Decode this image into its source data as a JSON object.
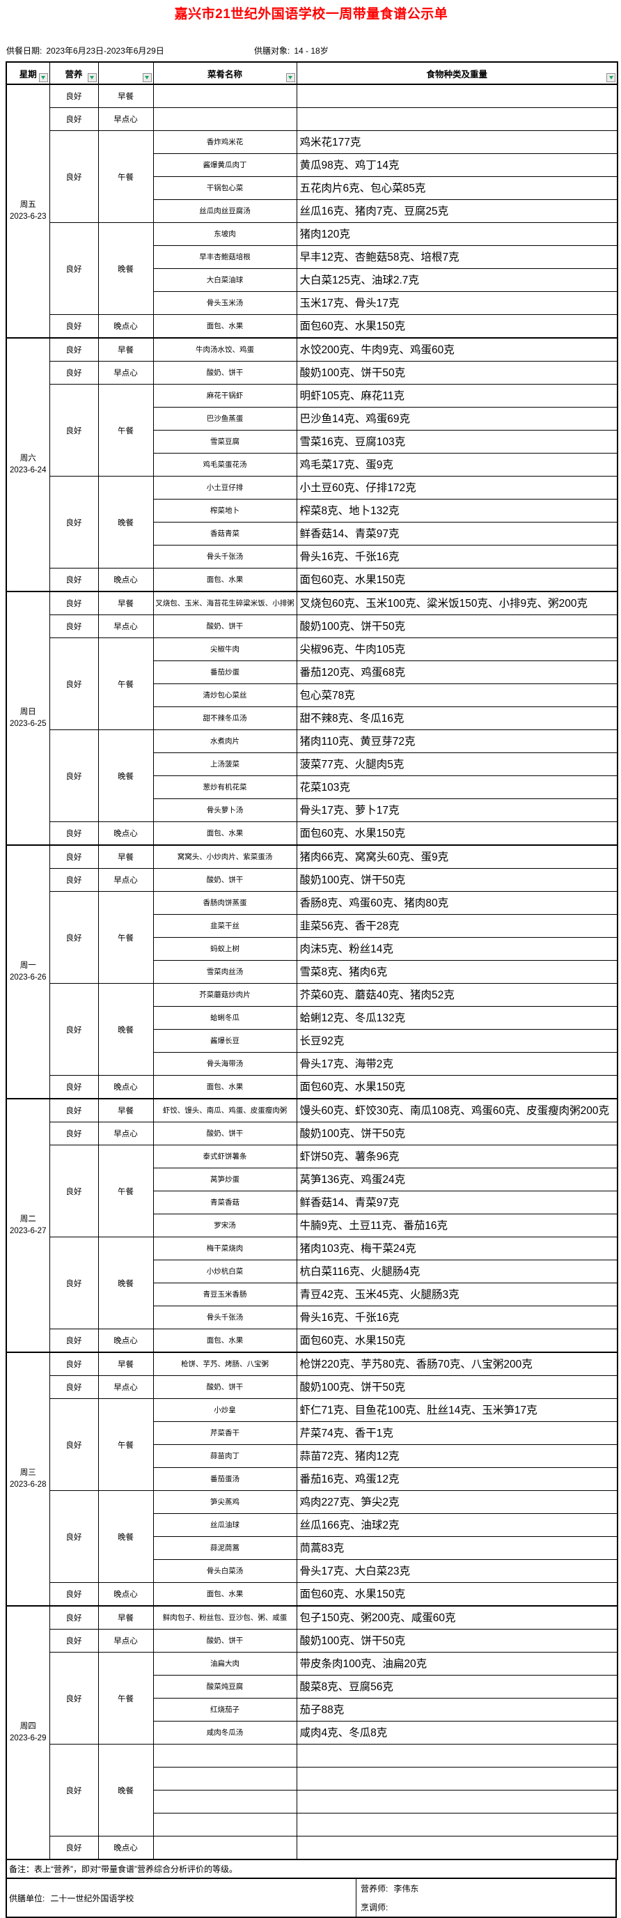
{
  "title": "嘉兴市21世纪外国语学校一周带量食谱公示单",
  "accent_colors": {
    "title_red": "#FF0000",
    "filter_green": "#1FA463"
  },
  "meta": {
    "serve_date_label": "供餐日期:",
    "serve_date": "2023年6月23日-2023年6月29日",
    "target_label": "供膳对象:",
    "target": "14 - 18岁"
  },
  "table": {
    "headers": {
      "day": "星期",
      "nutrition": "营养",
      "meal": "",
      "dish": "菜肴名称",
      "food": "食物种类及重量"
    },
    "filter_icon": "filter-dropdown-icon",
    "days": [
      {
        "label": "周五",
        "date": "2023-6-23",
        "meals": [
          {
            "nutrition": "良好",
            "name": "早餐",
            "rows": [
              [
                "",
                ""
              ]
            ]
          },
          {
            "nutrition": "良好",
            "name": "早点心",
            "rows": [
              [
                "",
                ""
              ]
            ]
          },
          {
            "nutrition": "良好",
            "name": "午餐",
            "rows": [
              [
                "香炸鸡米花",
                "鸡米花177克"
              ],
              [
                "酱爆黄瓜肉丁",
                "黄瓜98克、鸡丁14克"
              ],
              [
                "干锅包心菜",
                "五花肉片6克、包心菜85克"
              ],
              [
                "丝瓜肉丝豆腐汤",
                "丝瓜16克、猪肉7克、豆腐25克"
              ]
            ]
          },
          {
            "nutrition": "良好",
            "name": "晚餐",
            "rows": [
              [
                "东坡肉",
                "猪肉120克"
              ],
              [
                "早丰杏鲍菇培根",
                "早丰12克、杏鲍菇58克、培根7克"
              ],
              [
                "大白菜油球",
                "大白菜125克、油球2.7克"
              ],
              [
                "骨头玉米汤",
                "玉米17克、骨头17克"
              ]
            ]
          },
          {
            "nutrition": "良好",
            "name": "晚点心",
            "rows": [
              [
                "面包、水果",
                "面包60克、水果150克"
              ]
            ]
          }
        ]
      },
      {
        "label": "周六",
        "date": "2023-6-24",
        "meals": [
          {
            "nutrition": "良好",
            "name": "早餐",
            "rows": [
              [
                "牛肉汤水饺、鸡蛋",
                "水饺200克、牛肉9克、鸡蛋60克"
              ]
            ]
          },
          {
            "nutrition": "良好",
            "name": "早点心",
            "rows": [
              [
                "酸奶、饼干",
                "酸奶100克、饼干50克"
              ]
            ]
          },
          {
            "nutrition": "良好",
            "name": "午餐",
            "rows": [
              [
                "麻花干锅虾",
                "明虾105克、麻花11克"
              ],
              [
                "巴沙鱼蒸蛋",
                "巴沙鱼14克、鸡蛋69克"
              ],
              [
                "雪菜豆腐",
                "雪菜16克、豆腐103克"
              ],
              [
                "鸡毛菜蛋花汤",
                "鸡毛菜17克、蛋9克"
              ]
            ]
          },
          {
            "nutrition": "良好",
            "name": "晚餐",
            "rows": [
              [
                "小土豆仔排",
                "小土豆60克、仔排172克"
              ],
              [
                "榨菜地卜",
                "榨菜8克、地卜132克"
              ],
              [
                "香菇青菜",
                "鲜香菇14、青菜97克"
              ],
              [
                "骨头千张汤",
                "骨头16克、千张16克"
              ]
            ]
          },
          {
            "nutrition": "良好",
            "name": "晚点心",
            "rows": [
              [
                "面包、水果",
                "面包60克、水果150克"
              ]
            ]
          }
        ]
      },
      {
        "label": "周日",
        "date": "2023-6-25",
        "meals": [
          {
            "nutrition": "良好",
            "name": "早餐",
            "rows": [
              [
                "叉烧包、玉米、海苔花生碎粱米饭、小排粥",
                "叉烧包60克、玉米100克、粱米饭150克、小排9克、粥200克"
              ]
            ]
          },
          {
            "nutrition": "良好",
            "name": "早点心",
            "rows": [
              [
                "酸奶、饼干",
                "酸奶100克、饼干50克"
              ]
            ]
          },
          {
            "nutrition": "良好",
            "name": "午餐",
            "rows": [
              [
                "尖椒牛肉",
                "尖椒96克、牛肉105克"
              ],
              [
                "番茄炒蛋",
                "番茄120克、鸡蛋68克"
              ],
              [
                "清炒包心菜丝",
                "包心菜78克"
              ],
              [
                "甜不辣冬瓜汤",
                "甜不辣8克、冬瓜16克"
              ]
            ]
          },
          {
            "nutrition": "良好",
            "name": "晚餐",
            "rows": [
              [
                "水煮肉片",
                "猪肉110克、黄豆芽72克"
              ],
              [
                "上汤菠菜",
                "菠菜77克、火腿肉5克"
              ],
              [
                "葱炒有机花菜",
                "花菜103克"
              ],
              [
                "骨头萝卜汤",
                "骨头17克、萝卜17克"
              ]
            ]
          },
          {
            "nutrition": "良好",
            "name": "晚点心",
            "rows": [
              [
                "面包、水果",
                "面包60克、水果150克"
              ]
            ]
          }
        ]
      },
      {
        "label": "周一",
        "date": "2023-6-26",
        "meals": [
          {
            "nutrition": "良好",
            "name": "早餐",
            "rows": [
              [
                "窝窝头、小炒肉片、紫菜蛋汤",
                "猪肉66克、窝窝头60克、蛋9克"
              ]
            ]
          },
          {
            "nutrition": "良好",
            "name": "早点心",
            "rows": [
              [
                "酸奶、饼干",
                "酸奶100克、饼干50克"
              ]
            ]
          },
          {
            "nutrition": "良好",
            "name": "午餐",
            "rows": [
              [
                "香肠肉饼蒸蛋",
                "香肠8克、鸡蛋60克、猪肉80克"
              ],
              [
                "韭菜干丝",
                "韭菜56克、香干28克"
              ],
              [
                "蚂蚁上树",
                "肉沫5克、粉丝14克"
              ],
              [
                "雪菜肉丝汤",
                "雪菜8克、猪肉6克"
              ]
            ]
          },
          {
            "nutrition": "良好",
            "name": "晚餐",
            "rows": [
              [
                "芥菜蘑菇炒肉片",
                "芥菜60克、蘑菇40克、猪肉52克"
              ],
              [
                "蛤蜊冬瓜",
                "蛤蜊12克、冬瓜132克"
              ],
              [
                "酱爆长豆",
                "长豆92克"
              ],
              [
                "骨头海带汤",
                "骨头17克、海带2克"
              ]
            ]
          },
          {
            "nutrition": "良好",
            "name": "晚点心",
            "rows": [
              [
                "面包、水果",
                "面包60克、水果150克"
              ]
            ]
          }
        ]
      },
      {
        "label": "周二",
        "date": "2023-6-27",
        "meals": [
          {
            "nutrition": "良好",
            "name": "早餐",
            "rows": [
              [
                "虾饺、馒头、南瓜、鸡蛋、皮蛋瘦肉粥",
                "馒头60克、虾饺30克、南瓜108克、鸡蛋60克、皮蛋瘦肉粥200克"
              ]
            ]
          },
          {
            "nutrition": "良好",
            "name": "早点心",
            "rows": [
              [
                "酸奶、饼干",
                "酸奶100克、饼干50克"
              ]
            ]
          },
          {
            "nutrition": "良好",
            "name": "午餐",
            "rows": [
              [
                "泰式虾饼薯条",
                "虾饼50克、薯条96克"
              ],
              [
                "莴笋炒蛋",
                "莴笋136克、鸡蛋24克"
              ],
              [
                "青菜香菇",
                "鲜香菇14、青菜97克"
              ],
              [
                "罗宋汤",
                "牛腩9克、土豆11克、番茄16克"
              ]
            ]
          },
          {
            "nutrition": "良好",
            "name": "晚餐",
            "rows": [
              [
                "梅干菜烧肉",
                "猪肉103克、梅干菜24克"
              ],
              [
                "小炒杭白菜",
                "杭白菜116克、火腿肠4克"
              ],
              [
                "青豆玉米香肠",
                "青豆42克、玉米45克、火腿肠3克"
              ],
              [
                "骨头千张汤",
                "骨头16克、千张16克"
              ]
            ]
          },
          {
            "nutrition": "良好",
            "name": "晚点心",
            "rows": [
              [
                "面包、水果",
                "面包60克、水果150克"
              ]
            ]
          }
        ]
      },
      {
        "label": "周三",
        "date": "2023-6-28",
        "meals": [
          {
            "nutrition": "良好",
            "name": "早餐",
            "rows": [
              [
                "枪饼、芋艿、烤肠、八宝粥",
                "枪饼220克、芋艿80克、香肠70克、八宝粥200克"
              ]
            ]
          },
          {
            "nutrition": "良好",
            "name": "早点心",
            "rows": [
              [
                "酸奶、饼干",
                "酸奶100克、饼干50克"
              ]
            ]
          },
          {
            "nutrition": "良好",
            "name": "午餐",
            "rows": [
              [
                "小炒皇",
                "虾仁71克、目鱼花100克、肚丝14克、玉米笋17克"
              ],
              [
                "芹菜香干",
                "芹菜74克、香干1克"
              ],
              [
                "蒜苗肉丁",
                "蒜苗72克、猪肉12克"
              ],
              [
                "番茄蛋汤",
                "番茄16克、鸡蛋12克"
              ]
            ]
          },
          {
            "nutrition": "良好",
            "name": "晚餐",
            "rows": [
              [
                "笋尖蒸鸡",
                "鸡肉227克、笋尖2克"
              ],
              [
                "丝瓜油球",
                "丝瓜166克、油球2克"
              ],
              [
                "蒜泥茼蒿",
                "茼蒿83克"
              ],
              [
                "骨头白菜汤",
                "骨头17克、大白菜23克"
              ]
            ]
          },
          {
            "nutrition": "良好",
            "name": "晚点心",
            "rows": [
              [
                "面包、水果",
                "面包60克、水果150克"
              ]
            ]
          }
        ]
      },
      {
        "label": "周四",
        "date": "2023-6-29",
        "meals": [
          {
            "nutrition": "良好",
            "name": "早餐",
            "rows": [
              [
                "鲜肉包子、粉丝包、豆沙包、粥、咸蛋",
                "包子150克、粥200克、咸蛋60克"
              ]
            ]
          },
          {
            "nutrition": "良好",
            "name": "早点心",
            "rows": [
              [
                "酸奶、饼干",
                "酸奶100克、饼干50克"
              ]
            ]
          },
          {
            "nutrition": "良好",
            "name": "午餐",
            "rows": [
              [
                "油扁大肉",
                "带皮条肉100克、油扁20克"
              ],
              [
                "酸菜炖豆腐",
                "酸菜8克、豆腐56克"
              ],
              [
                "红烧茄子",
                "茄子88克"
              ],
              [
                "咸肉冬瓜汤",
                "咸肉4克、冬瓜8克"
              ]
            ]
          },
          {
            "nutrition": "良好",
            "name": "晚餐",
            "rows": [
              [
                "",
                ""
              ],
              [
                "",
                ""
              ],
              [
                "",
                ""
              ],
              [
                "",
                ""
              ]
            ]
          },
          {
            "nutrition": "良好",
            "name": "晚点心",
            "rows": [
              [
                "",
                ""
              ]
            ]
          }
        ]
      }
    ]
  },
  "footer": {
    "note": "备注：表上“营养”，即对“带量食谱”营养综合分析评价的等级。",
    "supplier_label": "供膳单位:",
    "supplier": "二十一世纪外国语学校",
    "nutritionist_label": "营养师:",
    "nutritionist": "李伟东",
    "cook_label": "烹调师:",
    "cook": ""
  }
}
